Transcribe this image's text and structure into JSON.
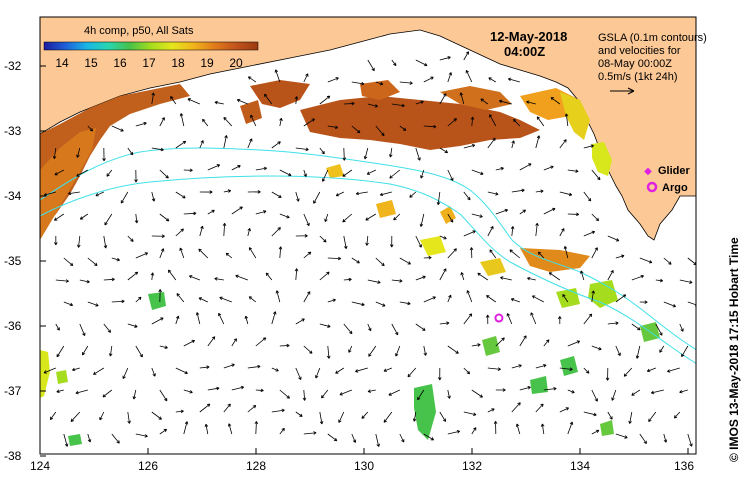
{
  "colorbar": {
    "title": "4h comp, p50, All Sats",
    "ticks": [
      "14",
      "15",
      "16",
      "17",
      "18",
      "19",
      "20"
    ],
    "colors": [
      "#1c1c9c",
      "#1f5fd8",
      "#19b5e6",
      "#28d6b0",
      "#47c24a",
      "#a6dc1e",
      "#e6e61c",
      "#f0b41c",
      "#e07a1c",
      "#c0521c",
      "#9c3a10"
    ]
  },
  "date": {
    "day": "12-May-2018",
    "time": "04:00Z"
  },
  "info": {
    "line1": "GSLA (0.1m contours)",
    "line2": "and velocities for",
    "line3": "08-May 00:00Z",
    "line4": "0.5m/s (1kt 24h)"
  },
  "legend": {
    "glider": "Glider",
    "argo": "Argo",
    "glider_color": "#e020e0",
    "argo_color": "#e020e0"
  },
  "axes": {
    "y_labels": [
      "-32",
      "-33",
      "-34",
      "-35",
      "-36",
      "-37",
      "-38"
    ],
    "x_labels": [
      "124",
      "126",
      "128",
      "130",
      "132",
      "134",
      "136"
    ]
  },
  "credit": "© IMOS 13-May-2018 17:15 Hobart Time",
  "colors": {
    "land": "#fcc896",
    "contour": "#40e0e8",
    "frame": "#000000"
  },
  "argo_float": {
    "lon": 132.5,
    "lat": -35.9
  }
}
